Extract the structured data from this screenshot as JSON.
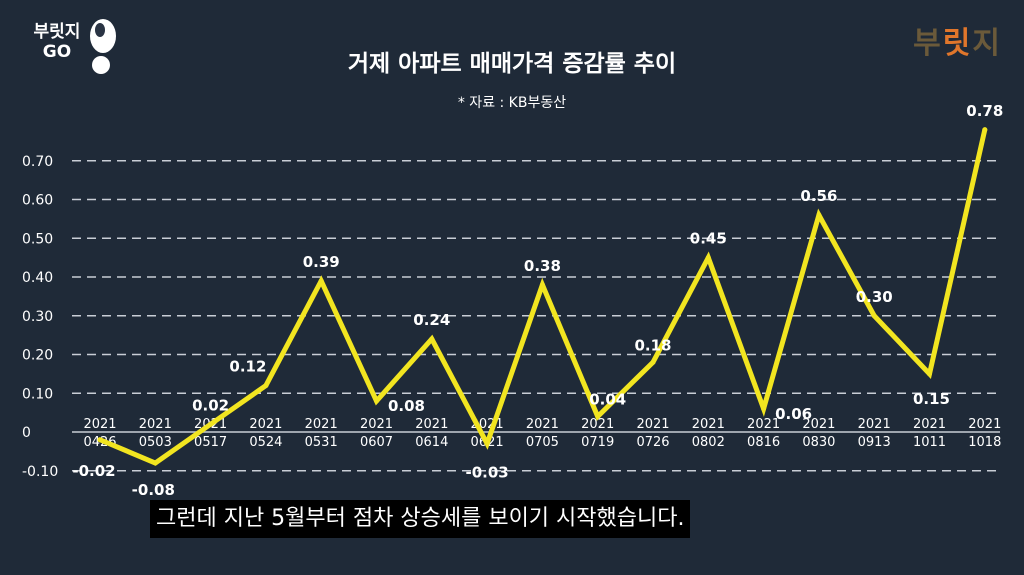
{
  "brand": {
    "left_line1": "부릿지",
    "left_line2": "GO",
    "right_text_a": "부",
    "right_text_b": "릿",
    "right_text_c": "지"
  },
  "subtitle": "그런데 지난 5월부터 점차 상승세를 보이기 시작했습니다.",
  "colors": {
    "background": "#1f2a38",
    "line": "#f2e520",
    "grid": "#c9ced6"
  },
  "chart_data": {
    "type": "line",
    "title": "거제 아파트 매매가격 증감률 추이",
    "subtitle": "* 자료 : KB부동산",
    "categories": [
      "2021 0426",
      "2021 0503",
      "2021 0517",
      "2021 0524",
      "2021 0531",
      "2021 0607",
      "2021 0614",
      "2021 0621",
      "2021 0705",
      "2021 0719",
      "2021 0726",
      "2021 0802",
      "2021 0816",
      "2021 0830",
      "2021 0913",
      "2021 1011",
      "2021 1018"
    ],
    "cat_top": [
      "2021",
      "2021",
      "2021",
      "2021",
      "2021",
      "2021",
      "2021",
      "2021",
      "2021",
      "2021",
      "2021",
      "2021",
      "2021",
      "2021",
      "2021",
      "2021",
      "2021"
    ],
    "cat_bottom": [
      "0426",
      "0503",
      "0517",
      "0524",
      "0531",
      "0607",
      "0614",
      "0621",
      "0705",
      "0719",
      "0726",
      "0802",
      "0816",
      "0830",
      "0913",
      "1011",
      "1018"
    ],
    "values": [
      -0.02,
      -0.08,
      0.02,
      0.12,
      0.39,
      0.08,
      0.24,
      -0.03,
      0.38,
      0.04,
      0.18,
      0.45,
      0.06,
      0.56,
      0.3,
      0.15,
      0.78
    ],
    "value_labels": [
      "-0.02",
      "-0.08",
      "0.02",
      "0.12",
      "0.39",
      "0.08",
      "0.24",
      "-0.03",
      "0.38",
      "0.04",
      "0.18",
      "0.45",
      "0.06",
      "0.56",
      "0.30",
      "0.15",
      "0.78"
    ],
    "yticks": [
      -0.1,
      0,
      0.1,
      0.2,
      0.3,
      0.4,
      0.5,
      0.6,
      0.7
    ],
    "ytick_labels": [
      "-0.10",
      "0",
      "0.10",
      "0.20",
      "0.30",
      "0.40",
      "0.50",
      "0.60",
      "0.70"
    ],
    "ylim": [
      -0.1,
      0.78
    ],
    "grid": true,
    "legend": "none"
  }
}
